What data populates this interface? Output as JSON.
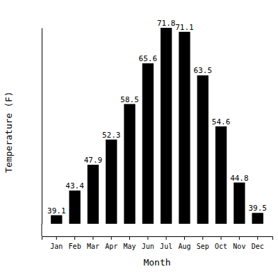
{
  "chart_data": {
    "type": "bar",
    "x_label": "Month",
    "y_label": "Temperature (F)",
    "categories": [
      "Jan",
      "Feb",
      "Mar",
      "Apr",
      "May",
      "Jun",
      "Jul",
      "Aug",
      "Sep",
      "Oct",
      "Nov",
      "Dec"
    ],
    "values": [
      39.1,
      43.4,
      47.9,
      52.3,
      58.5,
      65.6,
      71.8,
      71.1,
      63.5,
      54.6,
      44.8,
      39.5
    ],
    "color": "#000000",
    "ylim": [
      37.6,
      71.8
    ],
    "grid": false,
    "data_labels": true,
    "tick_labels": "x"
  }
}
